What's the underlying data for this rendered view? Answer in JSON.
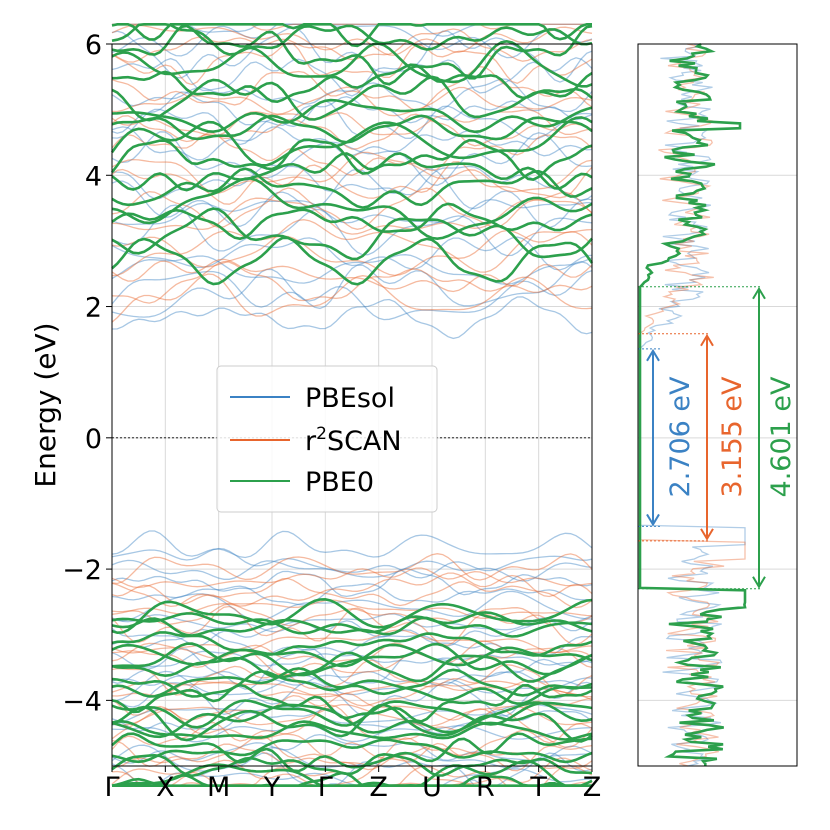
{
  "colors": {
    "pbesol": "#3b82c4",
    "r2scan": "#e8652d",
    "pbe0": "#2ca04c",
    "grid": "#d9d9d9",
    "axis": "#000000"
  },
  "chart_data": [
    {
      "name": "band-structure",
      "type": "line",
      "ylabel": "Energy (eV)",
      "ylim": [
        -5,
        6
      ],
      "yticks": [
        6,
        4,
        2,
        0,
        -2,
        -4
      ],
      "ytick_labels": [
        "6",
        "4",
        "2",
        "0",
        "−2",
        "−4"
      ],
      "kpath": [
        "Γ",
        "X",
        "M",
        "Y",
        "Γ",
        "Z",
        "U",
        "R",
        "T",
        "Z"
      ],
      "fermi_level": 0,
      "legend": {
        "placement": "center-left",
        "entries": [
          {
            "label": "PBEsol",
            "series": "pbesol"
          },
          {
            "label_main": "r",
            "label_sup": "2",
            "label_tail": "SCAN",
            "series": "r2scan"
          },
          {
            "label": "PBE0",
            "series": "pbe0"
          }
        ]
      },
      "series": [
        {
          "name": "PBEsol",
          "key": "pbesol",
          "vbm": -1.35,
          "cbm": 1.356,
          "gap_eV": 2.706
        },
        {
          "name": "r2SCAN",
          "key": "r2scan",
          "vbm": -1.57,
          "cbm": 1.585,
          "gap_eV": 3.155
        },
        {
          "name": "PBE0",
          "key": "pbe0",
          "vbm": -2.3,
          "cbm": 2.301,
          "gap_eV": 4.601
        }
      ]
    },
    {
      "name": "density-of-states",
      "type": "line",
      "ylim": [
        -5,
        6
      ],
      "gap_annotations": [
        {
          "label": "2.706 eV",
          "series": "pbesol"
        },
        {
          "label": "3.155 eV",
          "series": "r2scan"
        },
        {
          "label": "4.601 eV",
          "series": "pbe0"
        }
      ]
    }
  ]
}
